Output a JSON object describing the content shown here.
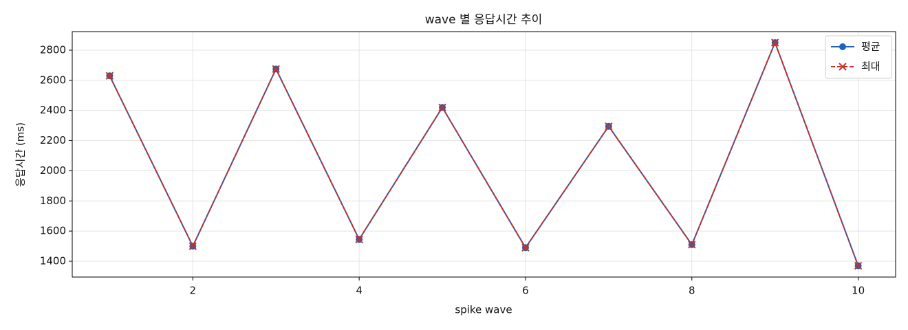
{
  "chart_data": {
    "type": "line",
    "title": "wave 별 응답시간 추이",
    "xlabel": "spike wave",
    "ylabel": "응답시간 (ms)",
    "x": [
      1,
      2,
      3,
      4,
      5,
      6,
      7,
      8,
      9,
      10
    ],
    "series": [
      {
        "name": "평균",
        "color": "#1f63b8",
        "marker": "o",
        "dash": false,
        "values": [
          2630,
          1500,
          2675,
          1545,
          2420,
          1490,
          2295,
          1510,
          2850,
          1370
        ]
      },
      {
        "name": "최대",
        "color": "#c8312b",
        "marker": "x",
        "dash": true,
        "values": [
          2630,
          1500,
          2675,
          1545,
          2420,
          1490,
          2295,
          1510,
          2850,
          1370
        ]
      }
    ],
    "xlim": [
      0.55,
      10.45
    ],
    "xticks": [
      2,
      4,
      6,
      8,
      10
    ],
    "ylim": [
      1295,
      2923
    ],
    "yticks": [
      1400,
      1600,
      1800,
      2000,
      2200,
      2400,
      2600,
      2800
    ],
    "grid": true,
    "legend": "upper right"
  }
}
